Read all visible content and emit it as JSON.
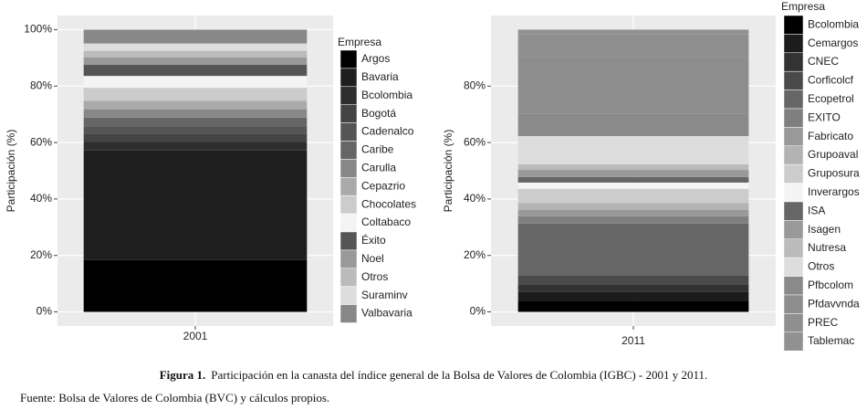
{
  "chart_data": [
    {
      "type": "bar",
      "stacked": true,
      "y_label": "Participación (%)",
      "legend_title": "Empresa",
      "categories": [
        "2001"
      ],
      "ylim": [
        -5,
        105
      ],
      "yticks": [
        {
          "value": 0,
          "label": "0%"
        },
        {
          "value": 20,
          "label": "20%"
        },
        {
          "value": 40,
          "label": "40%"
        },
        {
          "value": 60,
          "label": "60%"
        },
        {
          "value": 80,
          "label": "80%"
        },
        {
          "value": 100,
          "label": "100%"
        }
      ],
      "grid": true,
      "series": [
        {
          "name": "Argos",
          "color": "#000000",
          "values": [
            18.4
          ]
        },
        {
          "name": "Bavaria",
          "color": "#1e1e1e",
          "values": [
            38.8
          ]
        },
        {
          "name": "Bcolombia",
          "color": "#2e2e2e",
          "values": [
            3
          ]
        },
        {
          "name": "Bogotá",
          "color": "#444444",
          "values": [
            3
          ]
        },
        {
          "name": "Cadenalco",
          "color": "#555555",
          "values": [
            2.6
          ]
        },
        {
          "name": "Caribe",
          "color": "#666666",
          "values": [
            3
          ]
        },
        {
          "name": "Carulla",
          "color": "#888888",
          "values": [
            3
          ]
        },
        {
          "name": "Cepazrio",
          "color": "#aaaaaa",
          "values": [
            3
          ]
        },
        {
          "name": "Chocolates",
          "color": "#cccccc",
          "values": [
            4.6
          ]
        },
        {
          "name": "Coltabaco",
          "color": "#f4f4f4",
          "values": [
            4.2
          ]
        },
        {
          "name": "Éxito",
          "color": "#555555",
          "values": [
            4
          ]
        },
        {
          "name": "Noel",
          "color": "#999999",
          "values": [
            2.6
          ]
        },
        {
          "name": "Otros",
          "color": "#bbbbbb",
          "values": [
            2.3
          ]
        },
        {
          "name": "Suraminv",
          "color": "#dddddd",
          "values": [
            2.6
          ]
        },
        {
          "name": "Valbavaria",
          "color": "#888888",
          "values": [
            4.9
          ]
        }
      ]
    },
    {
      "type": "bar",
      "stacked": true,
      "y_label": "Participación (%)",
      "legend_title": "Empresa",
      "categories": [
        "2011"
      ],
      "ylim": [
        -5,
        105
      ],
      "yticks": [
        {
          "value": 0,
          "label": "0%"
        },
        {
          "value": 20,
          "label": "20%"
        },
        {
          "value": 40,
          "label": "40%"
        },
        {
          "value": 60,
          "label": "60%"
        },
        {
          "value": 80,
          "label": "80%"
        }
      ],
      "grid": true,
      "series": [
        {
          "name": "Bcolombia",
          "color": "#000000",
          "values": [
            4
          ]
        },
        {
          "name": "Cemargos",
          "color": "#1c1c1c",
          "values": [
            3.2
          ]
        },
        {
          "name": "CNEC",
          "color": "#333333",
          "values": [
            2.6
          ]
        },
        {
          "name": "Corficolcf",
          "color": "#4a4a4a",
          "values": [
            3
          ]
        },
        {
          "name": "Ecopetrol",
          "color": "#666666",
          "values": [
            18.5
          ]
        },
        {
          "name": "EXITO",
          "color": "#7f7f7f",
          "values": [
            2.6
          ]
        },
        {
          "name": "Fabricato",
          "color": "#999999",
          "values": [
            2.2
          ]
        },
        {
          "name": "Grupoaval",
          "color": "#b3b3b3",
          "values": [
            2.5
          ]
        },
        {
          "name": "Gruposura",
          "color": "#cccccc",
          "values": [
            5
          ]
        },
        {
          "name": "Inverargos",
          "color": "#f4f4f4",
          "values": [
            2.2
          ]
        },
        {
          "name": "ISA",
          "color": "#666666",
          "values": [
            2
          ]
        },
        {
          "name": "Isagen",
          "color": "#999999",
          "values": [
            2.5
          ]
        },
        {
          "name": "Nutresa",
          "color": "#bbbbbb",
          "values": [
            2
          ]
        },
        {
          "name": "Otros",
          "color": "#dddddd",
          "values": [
            10
          ]
        },
        {
          "name": "Pfbcolom",
          "color": "#8a8a8a",
          "values": [
            8
          ]
        },
        {
          "name": "Pfdavvnda",
          "color": "#8d8d8d",
          "values": [
            20
          ]
        },
        {
          "name": "PREC",
          "color": "#8f8f8f",
          "values": [
            8
          ]
        },
        {
          "name": "Tablemac",
          "color": "#919191",
          "values": [
            1.7
          ]
        }
      ]
    }
  ],
  "caption": {
    "label": "Figura 1.",
    "text": "Participación en la canasta del índice general de la Bolsa de Valores de Colombia (IGBC) - 2001 y 2011."
  },
  "source": "Fuente: Bolsa de Valores de Colombia (BVC) y cálculos propios."
}
